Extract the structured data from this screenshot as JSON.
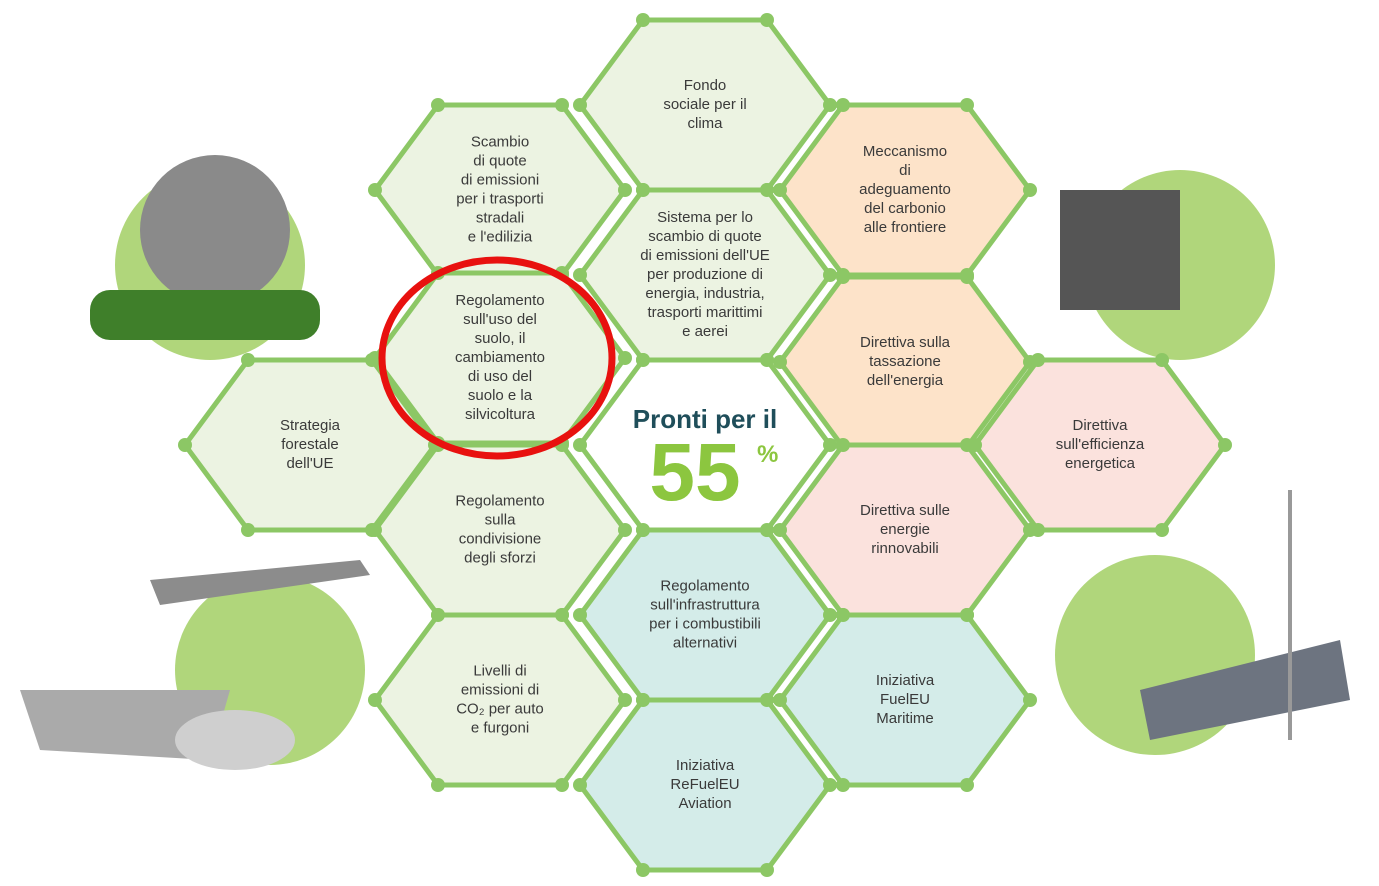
{
  "hexagons": [
    {
      "lines": [
        "Fondo",
        "sociale per il",
        "clima"
      ]
    },
    {
      "lines": [
        "Scambio",
        "di quote",
        "di emissioni",
        "per i trasporti",
        "stradali",
        "e l'edilizia"
      ]
    },
    {
      "lines": [
        "Meccanismo",
        "di",
        "adeguamento",
        "del carbonio",
        "alle frontiere"
      ]
    },
    {
      "lines": [
        "Sistema per lo",
        "scambio di quote",
        "di emissioni dell'UE",
        "per produzione di",
        "energia, industria,",
        "trasporti marittimi",
        "e aerei"
      ]
    },
    {
      "lines": [
        "Regolamento",
        "sull'uso del",
        "suolo, il",
        "cambiamento",
        "di uso del",
        "suolo e la",
        "silvicoltura"
      ]
    },
    {
      "lines": [
        "Direttiva sulla",
        "tassazione",
        "dell'energia"
      ]
    },
    {
      "lines": [
        "Strategia",
        "forestale",
        "dell'UE"
      ]
    },
    {
      "lines": [
        "Direttiva",
        "sull'efficienza",
        "energetica"
      ]
    },
    {
      "lines": [
        "Regolamento",
        "sulla",
        "condivisione",
        "degli sforzi"
      ]
    },
    {
      "lines": [
        "Direttiva sulle",
        "energie",
        "rinnovabili"
      ]
    },
    {
      "lines": [
        "Regolamento",
        "sull'infrastruttura",
        "per i combustibili",
        "alternativi"
      ]
    },
    {
      "lines": [
        "Livelli di",
        "emissioni di",
        "CO₂ per auto",
        "e furgoni"
      ]
    },
    {
      "lines": [
        "Iniziativa",
        "FuelEU",
        "Maritime"
      ]
    },
    {
      "lines": [
        "Iniziativa",
        "ReFuelEU",
        "Aviation"
      ]
    }
  ],
  "center": {
    "title": "Pronti per il",
    "number": "55",
    "unit": "%"
  }
}
